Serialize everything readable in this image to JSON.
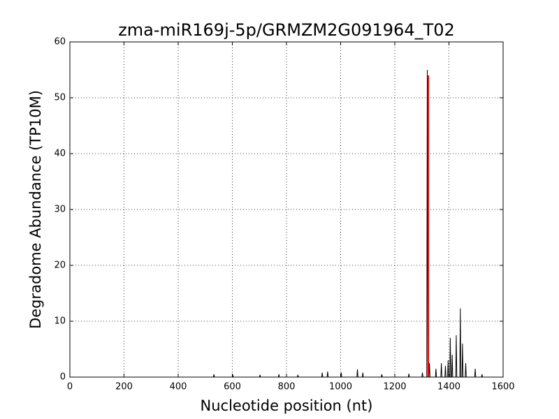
{
  "chart_data": {
    "type": "line",
    "title": "zma-miR169j-5p/GRMZM2G091964_T02",
    "x_label": "Nucleotide position (nt)",
    "y_label": "Degradome Abundance (TP10M)",
    "xlim": [
      0,
      1600
    ],
    "xticks": [
      0,
      200,
      400,
      600,
      800,
      1000,
      1200,
      1400,
      1600
    ],
    "ylim": [
      0,
      60
    ],
    "yticks": [
      0,
      10,
      20,
      30,
      40,
      50,
      60
    ],
    "grid": true,
    "series": [
      {
        "color": "#000000",
        "x": [
          0,
          530,
          532,
          534,
          600,
          602,
          604,
          700,
          702,
          704,
          770,
          772,
          774,
          840,
          842,
          844,
          930,
          932,
          934,
          950,
          952,
          954,
          1000,
          1002,
          1004,
          1060,
          1062,
          1064,
          1080,
          1082,
          1084,
          1150,
          1152,
          1154,
          1250,
          1252,
          1254,
          1300,
          1302,
          1304,
          1318,
          1320,
          1322,
          1326,
          1328,
          1330,
          1350,
          1352,
          1354,
          1370,
          1372,
          1374,
          1385,
          1387,
          1389,
          1395,
          1397,
          1399,
          1403,
          1405,
          1407,
          1410,
          1412,
          1414,
          1425,
          1427,
          1429,
          1440,
          1442,
          1444,
          1448,
          1450,
          1452,
          1460,
          1462,
          1464,
          1495,
          1497,
          1499,
          1520,
          1522,
          1524,
          1560
        ],
        "values": [
          0,
          0,
          0.5,
          0,
          0,
          0.3,
          0,
          0,
          0.4,
          0,
          0,
          0.5,
          0,
          0,
          0.4,
          0,
          0,
          0.8,
          0,
          0,
          1,
          0,
          0,
          0.8,
          0,
          0,
          1.4,
          0,
          0,
          0.8,
          0,
          0,
          0.5,
          0,
          0,
          0.6,
          0,
          0,
          0.8,
          0,
          0,
          55,
          0,
          0,
          2.5,
          0,
          0,
          1.5,
          0,
          0,
          2.5,
          0,
          0,
          2,
          0,
          0,
          3,
          0,
          0,
          7,
          0,
          0,
          4,
          0,
          0,
          7.5,
          0,
          0,
          12.3,
          0,
          0,
          6,
          0,
          0,
          2.5,
          0,
          0,
          1.5,
          0,
          0,
          0.5,
          0,
          0
        ]
      },
      {
        "color": "#ff0000",
        "x": [
          1324,
          1324
        ],
        "values": [
          0,
          54
        ]
      }
    ]
  }
}
